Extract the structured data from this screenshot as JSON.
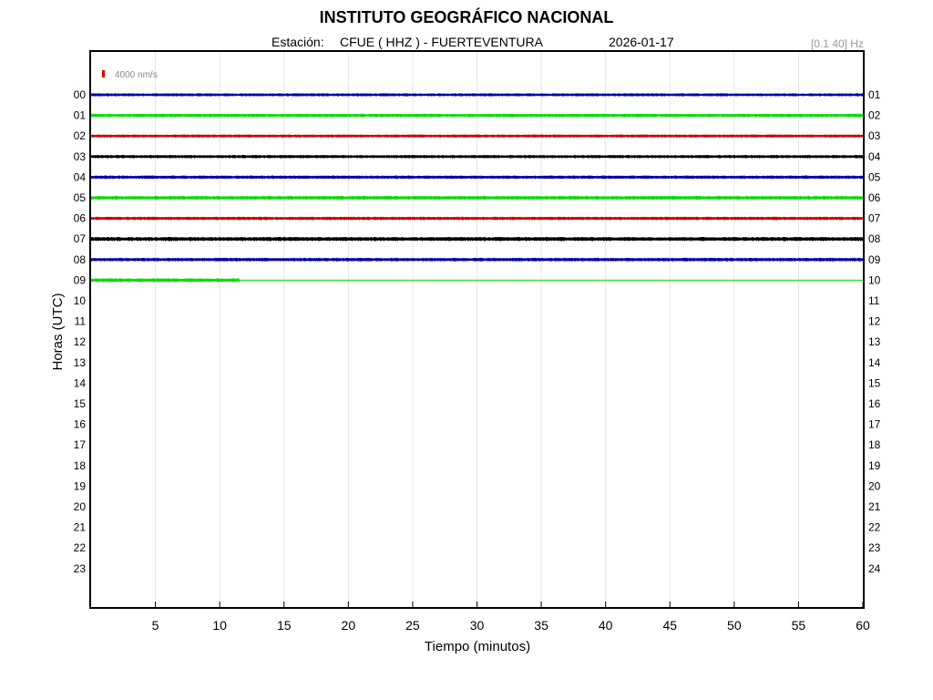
{
  "header": {
    "title": "INSTITUTO GEOGRÁFICO NACIONAL",
    "station_label": "Estación:",
    "station": "CFUE ( HHZ ) - FUERTEVENTURA",
    "date": "2026-01-17",
    "band": "[0.1 40] Hz"
  },
  "chart_data": {
    "type": "line",
    "title": "INSTITUTO GEOGRÁFICO NACIONAL",
    "xlabel": "Tiempo (minutos)",
    "ylabel": "Horas (UTC)",
    "xlim": [
      0,
      60
    ],
    "x_ticks": [
      5,
      10,
      15,
      20,
      25,
      30,
      35,
      40,
      45,
      50,
      55,
      60
    ],
    "left_hour_labels": [
      "00",
      "01",
      "02",
      "03",
      "04",
      "05",
      "06",
      "07",
      "08",
      "09",
      "10",
      "11",
      "12",
      "13",
      "14",
      "15",
      "16",
      "17",
      "18",
      "19",
      "20",
      "21",
      "22",
      "23"
    ],
    "right_hour_labels": [
      "01",
      "02",
      "03",
      "04",
      "05",
      "06",
      "07",
      "08",
      "09",
      "10",
      "11",
      "12",
      "13",
      "14",
      "15",
      "16",
      "17",
      "18",
      "19",
      "20",
      "21",
      "22",
      "23",
      "24"
    ],
    "scale_label": "4000 nm/s",
    "scale_color": "#dd0000",
    "grid": "vertical",
    "trace_colors": [
      "#0000aa",
      "#00dd00",
      "#cc0000",
      "#000000"
    ],
    "series": [
      {
        "hour": "00",
        "color": "#0000aa",
        "data_until_min": 60,
        "amplitude": 1.6
      },
      {
        "hour": "01",
        "color": "#00dd00",
        "data_until_min": 60,
        "amplitude": 1.8
      },
      {
        "hour": "02",
        "color": "#cc0000",
        "data_until_min": 60,
        "amplitude": 1.6
      },
      {
        "hour": "03",
        "color": "#000000",
        "data_until_min": 60,
        "amplitude": 1.7
      },
      {
        "hour": "04",
        "color": "#0000aa",
        "data_until_min": 60,
        "amplitude": 1.8
      },
      {
        "hour": "05",
        "color": "#00dd00",
        "data_until_min": 60,
        "amplitude": 2.0
      },
      {
        "hour": "06",
        "color": "#cc0000",
        "data_until_min": 60,
        "amplitude": 1.8
      },
      {
        "hour": "07",
        "color": "#000000",
        "data_until_min": 60,
        "amplitude": 2.2
      },
      {
        "hour": "08",
        "color": "#0000aa",
        "data_until_min": 60,
        "amplitude": 1.9
      },
      {
        "hour": "09",
        "color": "#00dd00",
        "data_until_min": 11.5,
        "amplitude": 2.0
      }
    ]
  }
}
